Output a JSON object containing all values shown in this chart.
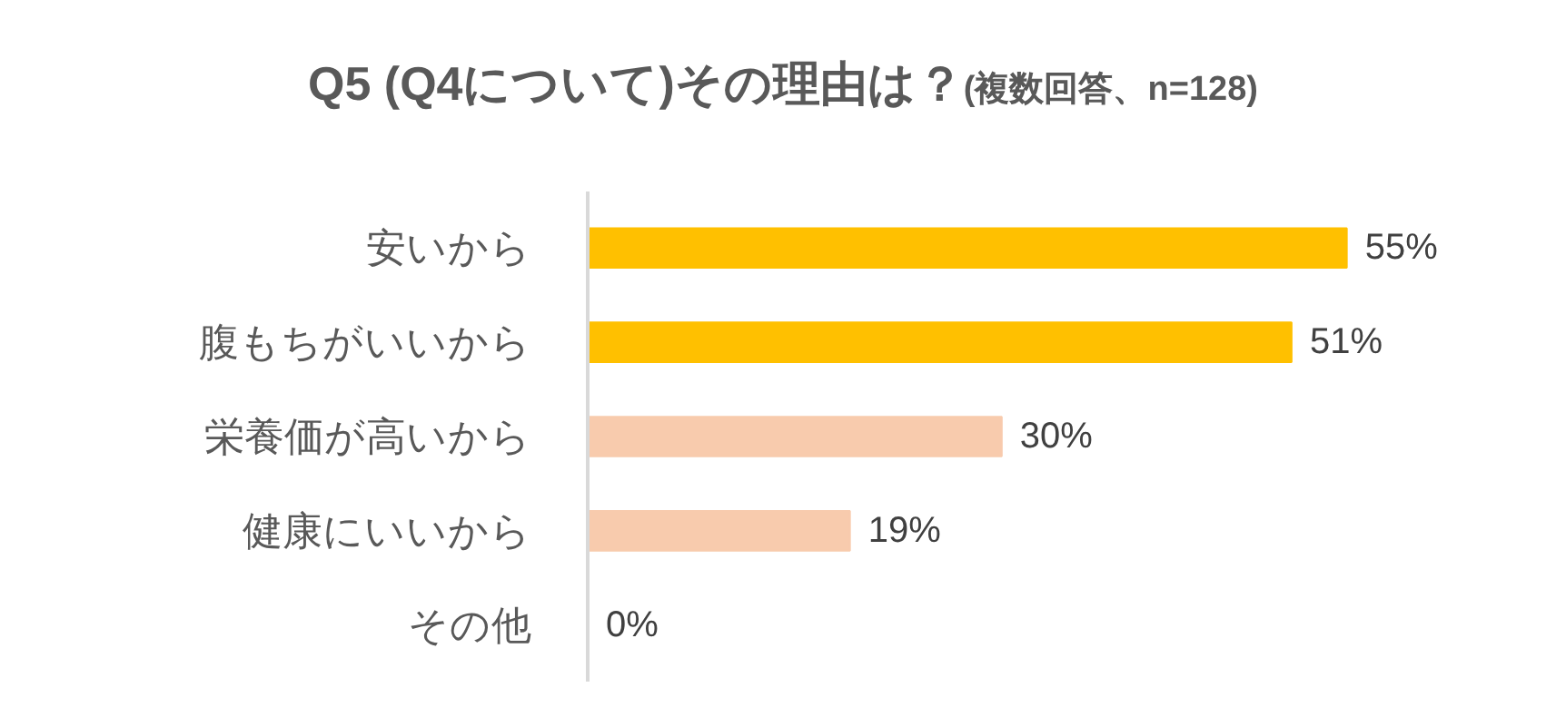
{
  "chart_data": {
    "type": "bar",
    "orientation": "horizontal",
    "title": "Q5 (Q4について)その理由は？",
    "subtitle": "(複数回答、n=128)",
    "categories": [
      "安いから",
      "腹もちがいいから",
      "栄養価が高いから",
      "健康にいいから",
      "その他"
    ],
    "values": [
      55,
      51,
      30,
      19,
      0
    ],
    "colors": [
      "#ffc000",
      "#ffc000",
      "#f8cbad",
      "#f8cbad",
      "#f8cbad"
    ],
    "value_labels": [
      "55%",
      "51%",
      "30%",
      "19%",
      "0%"
    ]
  }
}
